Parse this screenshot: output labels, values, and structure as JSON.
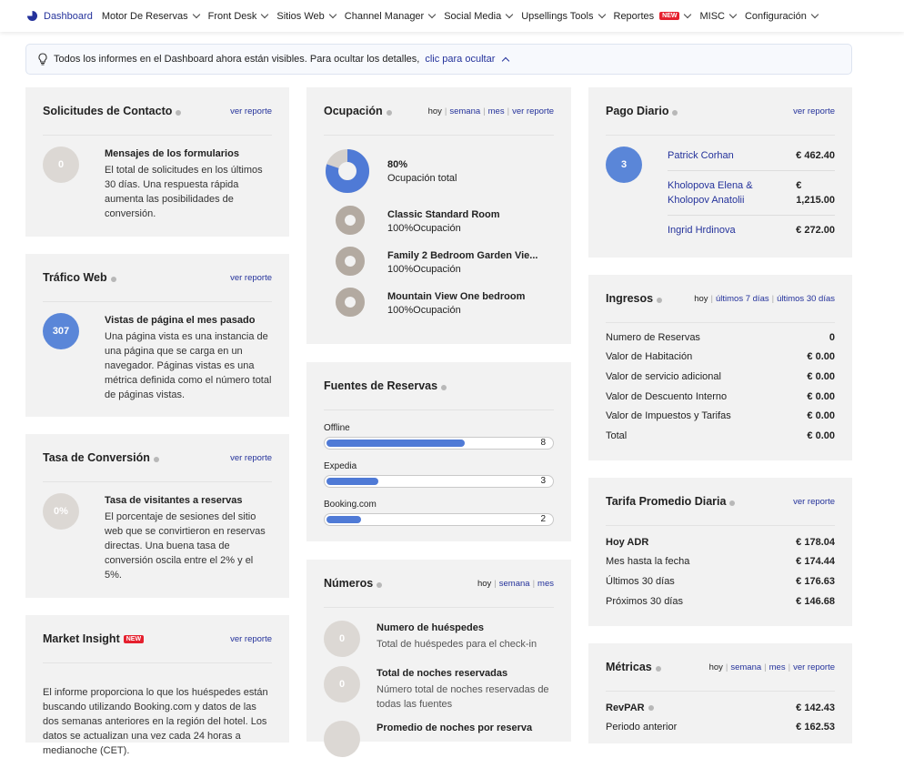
{
  "nav": {
    "items": [
      "Dashboard",
      "Motor De Reservas",
      "Front Desk",
      "Sitios Web",
      "Channel Manager",
      "Social Media",
      "Upsellings Tools",
      "Reportes",
      "MISC",
      "Configuración"
    ],
    "new_badge": "NEW"
  },
  "banner": {
    "text": "Todos los informes en el Dashboard ahora están visibles. Para ocultar los detalles,",
    "link": "clic para ocultar"
  },
  "contact": {
    "title": "Solicitudes de Contacto",
    "link": "ver reporte",
    "count": "0",
    "heading": "Mensajes de los formularios",
    "text": "El total de solicitudes en los últimos 30 días. Una respuesta rápida aumenta las posibilidades de conversión."
  },
  "traffic": {
    "title": "Tráfico Web",
    "link": "ver reporte",
    "count": "307",
    "heading": "Vistas de página el mes pasado",
    "text": "Una página vista es una instancia de una página que se carga en un navegador. Páginas vistas es una métrica definida como el número total de páginas vistas."
  },
  "conversion": {
    "title": "Tasa de Conversión",
    "link": "ver reporte",
    "count": "0%",
    "heading": "Tasa de visitantes a reservas",
    "text": "El porcentaje de sesiones del sitio web que se convirtieron en reservas directas. Una buena tasa de conversión oscila entre el 2% y el 5%."
  },
  "market": {
    "title": "Market Insight",
    "badge": "NEW",
    "link": "ver reporte",
    "text": "El informe proporciona lo que los huéspedes están buscando utilizando Booking.com y datos de las dos semanas anteriores en la región del hotel. Los datos se actualizan una vez cada 24 horas a medianoche (CET)."
  },
  "occupancy": {
    "title": "Ocupación",
    "links": [
      "hoy",
      "semana",
      "mes",
      "ver reporte"
    ],
    "total": {
      "value": 80,
      "label": "80%"
    },
    "total_text": "Ocupación total",
    "rooms": [
      {
        "name": "Classic Standard Room",
        "value": 100,
        "label": "100%Ocupación"
      },
      {
        "name": "Family 2 Bedroom Garden Vie...",
        "value": 100,
        "label": "100%Ocupación"
      },
      {
        "name": "Mountain View One bedroom",
        "value": 100,
        "label": "100%Ocupación"
      }
    ]
  },
  "sources": {
    "title": "Fuentes de Reservas",
    "items": [
      {
        "name": "Offline",
        "value": 8
      },
      {
        "name": "Expedia",
        "value": 3
      },
      {
        "name": "Booking.com",
        "value": 2
      }
    ]
  },
  "numbers": {
    "title": "Números",
    "links": [
      "hoy",
      "semana",
      "mes"
    ],
    "items": [
      {
        "count": "0",
        "label": "Numero de huéspedes",
        "text": "Total de huéspedes para el check-in"
      },
      {
        "count": "0",
        "label": "Total de noches reservadas",
        "text": "Número total de noches reservadas de todas las fuentes"
      },
      {
        "label": "Promedio de noches por reserva"
      }
    ]
  },
  "payments": {
    "title": "Pago Diario",
    "link": "ver reporte",
    "count": "3",
    "rows": [
      {
        "name": "Patrick Corhan",
        "amount": "€ 462.40"
      },
      {
        "name": "Kholopova Elena & Kholopov Anatolii",
        "amount": "€ 1,215.00"
      },
      {
        "name": "Ingrid Hrdinova",
        "amount": "€ 272.00"
      }
    ]
  },
  "income": {
    "title": "Ingresos",
    "links": [
      "hoy",
      "últimos 7 días",
      "últimos 30 días"
    ],
    "rows": [
      {
        "label": "Numero de Reservas",
        "value": "0"
      },
      {
        "label": "Valor de Habitación",
        "value": "€ 0.00"
      },
      {
        "label": "Valor de servicio adicional",
        "value": "€ 0.00"
      },
      {
        "label": "Valor de Descuento Interno",
        "value": "€ 0.00"
      },
      {
        "label": "Valor de Impuestos y Tarifas",
        "value": "€ 0.00"
      },
      {
        "label": "Total",
        "value": "€ 0.00"
      }
    ]
  },
  "adr": {
    "title": "Tarifa Promedio Diaria",
    "link": "ver reporte",
    "rows": [
      {
        "label": "Hoy ADR",
        "value": "€ 178.04"
      },
      {
        "label": "Mes hasta la fecha",
        "value": "€ 174.44"
      },
      {
        "label": "Últimos 30 días",
        "value": "€ 176.63"
      },
      {
        "label": "Próximos 30 días",
        "value": "€ 146.68"
      }
    ]
  },
  "metrics": {
    "title": "Métricas",
    "links": [
      "hoy",
      "semana",
      "mes",
      "ver reporte"
    ],
    "rows": [
      {
        "label": "RevPAR",
        "value": "€ 142.43"
      },
      {
        "label": "Periodo anterior",
        "value": "€ 162.53"
      }
    ]
  }
}
